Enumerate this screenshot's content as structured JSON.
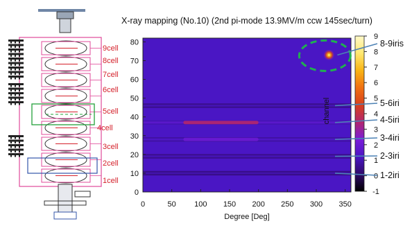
{
  "chart_data": {
    "type": "heatmap",
    "title": "X-ray mapping (No.10) (2nd pi-mode 13.9MV/m ccw 145sec/turn)",
    "xlabel": "Degree [Deg]",
    "ylabel": "channel",
    "xlim": [
      0,
      360
    ],
    "ylim": [
      0,
      82
    ],
    "x_ticks": [
      "0",
      "50",
      "100",
      "150",
      "200",
      "250",
      "300",
      "350"
    ],
    "y_ticks": [
      "0",
      "10",
      "20",
      "30",
      "40",
      "50",
      "60",
      "70",
      "80"
    ],
    "colorbar": {
      "range": [
        -1,
        9
      ],
      "ticks": [
        "-1",
        "0",
        "1",
        "2",
        "3",
        "4",
        "5",
        "6",
        "7",
        "8",
        "9"
      ]
    },
    "bands": [
      {
        "channel": 10,
        "level": 0.9
      },
      {
        "channel": 19,
        "level": 1.0
      },
      {
        "channel": 28,
        "level": 1.3
      },
      {
        "channel": 37,
        "level": 1.6
      },
      {
        "channel": 46,
        "level": 1.0
      }
    ],
    "hot_regions": [
      {
        "channel": 37,
        "x_from": 70,
        "x_to": 200,
        "level": 3.5
      },
      {
        "channel": 28,
        "x_from": 70,
        "x_to": 200,
        "level": 2.0
      }
    ],
    "hot_spot": {
      "x": 322,
      "channel": 73,
      "level": 8.5
    },
    "cell_labels": [
      "9cell",
      "8cell",
      "7cell",
      "6cell",
      "5cell",
      "4cell",
      "3cell",
      "2cell",
      "1cell"
    ],
    "iris_labels": [
      {
        "text": "8-9iris",
        "channel": 73
      },
      {
        "text": "5-6iri",
        "channel": 46
      },
      {
        "text": "4-5iri",
        "channel": 37
      },
      {
        "text": "3-4iri",
        "channel": 28
      },
      {
        "text": "2-3iri",
        "channel": 19
      },
      {
        "text": "1-2iri",
        "channel": 10
      }
    ]
  },
  "colors": {
    "background": "#4a16c4",
    "colormap": [
      "#000000",
      "#300a6a",
      "#4a16c4",
      "#7a1dd8",
      "#b02670",
      "#d8401d",
      "#f07012",
      "#f9b414",
      "#ffe870",
      "#fff9c8"
    ],
    "cell_label": "#d4202a",
    "highlight_ellipse": "#20b050"
  }
}
